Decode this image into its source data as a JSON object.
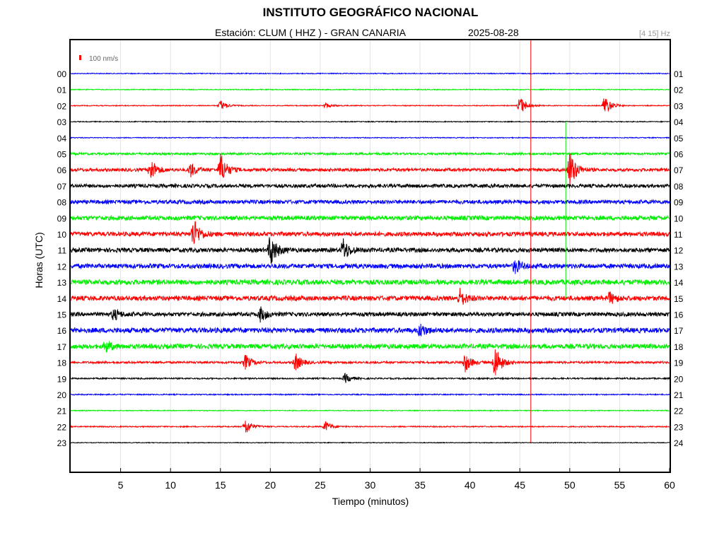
{
  "header": {
    "title": "INSTITUTO GEOGRÁFICO NACIONAL",
    "station": "Estación:  CLUM ( HHZ ) - GRAN CANARIA",
    "date": "2025-08-28",
    "band": "[4 15] Hz"
  },
  "chart_data": {
    "type": "line",
    "title": "INSTITUTO GEOGRÁFICO NACIONAL",
    "xlabel": "Tiempo (minutos)",
    "ylabel": "Horas (UTC)",
    "xlim": [
      0,
      60
    ],
    "x_ticks": [
      5,
      10,
      15,
      20,
      25,
      30,
      35,
      40,
      45,
      50,
      55,
      60
    ],
    "grid": true,
    "scale_label": "100 nm/s",
    "left_hours": [
      "00",
      "01",
      "02",
      "03",
      "04",
      "05",
      "06",
      "07",
      "08",
      "09",
      "10",
      "11",
      "12",
      "13",
      "14",
      "15",
      "16",
      "17",
      "18",
      "19",
      "20",
      "21",
      "22",
      "23"
    ],
    "right_hours": [
      "01",
      "02",
      "03",
      "04",
      "05",
      "06",
      "07",
      "08",
      "09",
      "10",
      "11",
      "12",
      "13",
      "14",
      "15",
      "16",
      "17",
      "18",
      "19",
      "20",
      "21",
      "22",
      "23",
      "24"
    ],
    "trace_colors": [
      "#0000ff",
      "#00ee00",
      "#ff0000",
      "#000000"
    ],
    "trace_noise": [
      0.6,
      0.6,
      0.6,
      0.6,
      0.6,
      1.5,
      2.2,
      2.5,
      2.7,
      3.0,
      3.0,
      3.0,
      3.2,
      3.5,
      3.3,
      2.8,
      3.5,
      3.3,
      1.5,
      1.0,
      0.8,
      0.6,
      0.8,
      0.5
    ],
    "events": [
      {
        "hour": 2,
        "minute": 15,
        "amp": 8
      },
      {
        "hour": 2,
        "minute": 25.5,
        "amp": 4
      },
      {
        "hour": 2,
        "minute": 45,
        "amp": 14
      },
      {
        "hour": 2,
        "minute": 53.5,
        "amp": 16
      },
      {
        "hour": 6,
        "minute": 8,
        "amp": 16
      },
      {
        "hour": 6,
        "minute": 12,
        "amp": 10
      },
      {
        "hour": 6,
        "minute": 15,
        "amp": 24
      },
      {
        "hour": 6,
        "minute": 50,
        "amp": 28
      },
      {
        "hour": 10,
        "minute": 12.3,
        "amp": 22
      },
      {
        "hour": 11,
        "minute": 20,
        "amp": 24
      },
      {
        "hour": 11,
        "minute": 27.3,
        "amp": 16
      },
      {
        "hour": 12,
        "minute": 44.5,
        "amp": 10
      },
      {
        "hour": 14,
        "minute": 39,
        "amp": 12
      },
      {
        "hour": 14,
        "minute": 54,
        "amp": 8
      },
      {
        "hour": 15,
        "minute": 19,
        "amp": 10
      },
      {
        "hour": 15,
        "minute": 4.3,
        "amp": 8
      },
      {
        "hour": 16,
        "minute": 35,
        "amp": 9
      },
      {
        "hour": 17,
        "minute": 3.5,
        "amp": 8
      },
      {
        "hour": 18,
        "minute": 17.5,
        "amp": 11
      },
      {
        "hour": 18,
        "minute": 22.5,
        "amp": 13
      },
      {
        "hour": 18,
        "minute": 39.5,
        "amp": 14
      },
      {
        "hour": 18,
        "minute": 42.5,
        "amp": 26
      },
      {
        "hour": 19,
        "minute": 27.5,
        "amp": 7
      },
      {
        "hour": 22,
        "minute": 17.5,
        "amp": 12
      },
      {
        "hour": 22,
        "minute": 25.5,
        "amp": 8
      }
    ],
    "markers": [
      {
        "minute": 46.1,
        "color": "#ff0000"
      },
      {
        "minute": 49.6,
        "color": "#00ee00"
      }
    ]
  }
}
